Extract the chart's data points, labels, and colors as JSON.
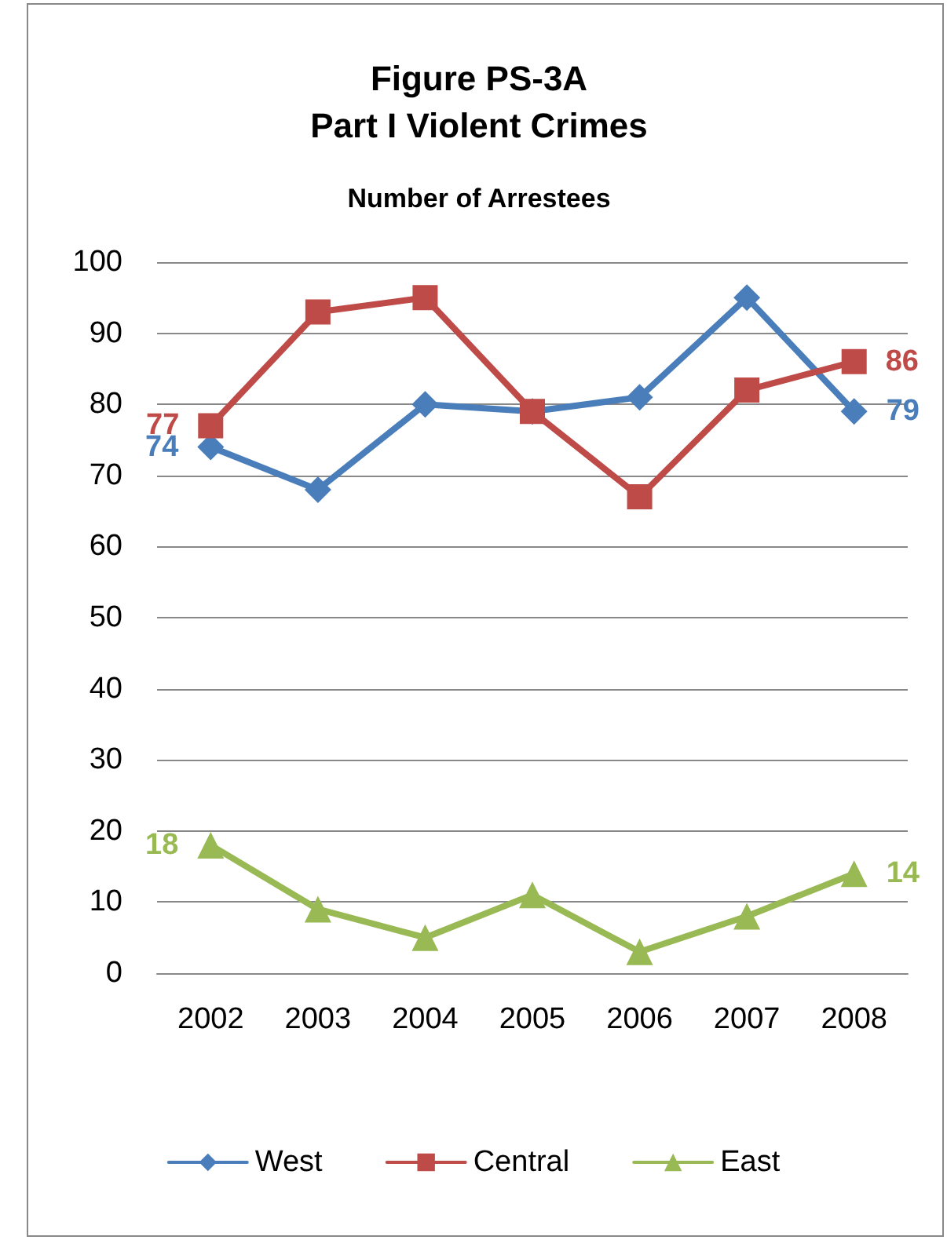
{
  "chart_data": {
    "type": "line",
    "title": "Figure PS-3A\nPart I Violent Crimes",
    "subtitle": "Number of Arrestees",
    "categories": [
      "2002",
      "2003",
      "2004",
      "2005",
      "2006",
      "2007",
      "2008"
    ],
    "series": [
      {
        "name": "West",
        "color": "#4a7ebb",
        "marker": "diamond",
        "values": [
          74,
          68,
          80,
          79,
          81,
          95,
          79
        ],
        "value_labels": [
          "74",
          null,
          null,
          null,
          null,
          null,
          "79"
        ]
      },
      {
        "name": "Central",
        "color": "#be4b48",
        "marker": "square",
        "values": [
          77,
          93,
          95,
          79,
          67,
          82,
          86
        ],
        "value_labels": [
          "77",
          null,
          null,
          null,
          null,
          null,
          "86"
        ]
      },
      {
        "name": "East",
        "color": "#98b954",
        "marker": "triangle",
        "values": [
          18,
          9,
          5,
          11,
          3,
          8,
          14
        ],
        "value_labels": [
          "18",
          null,
          null,
          null,
          null,
          null,
          "14"
        ]
      }
    ],
    "ylim": [
      0,
      100
    ],
    "yticks": [
      0,
      10,
      20,
      30,
      40,
      50,
      60,
      70,
      80,
      90,
      100
    ],
    "grid": "y",
    "legend": "bottom",
    "line_style": "solid"
  }
}
